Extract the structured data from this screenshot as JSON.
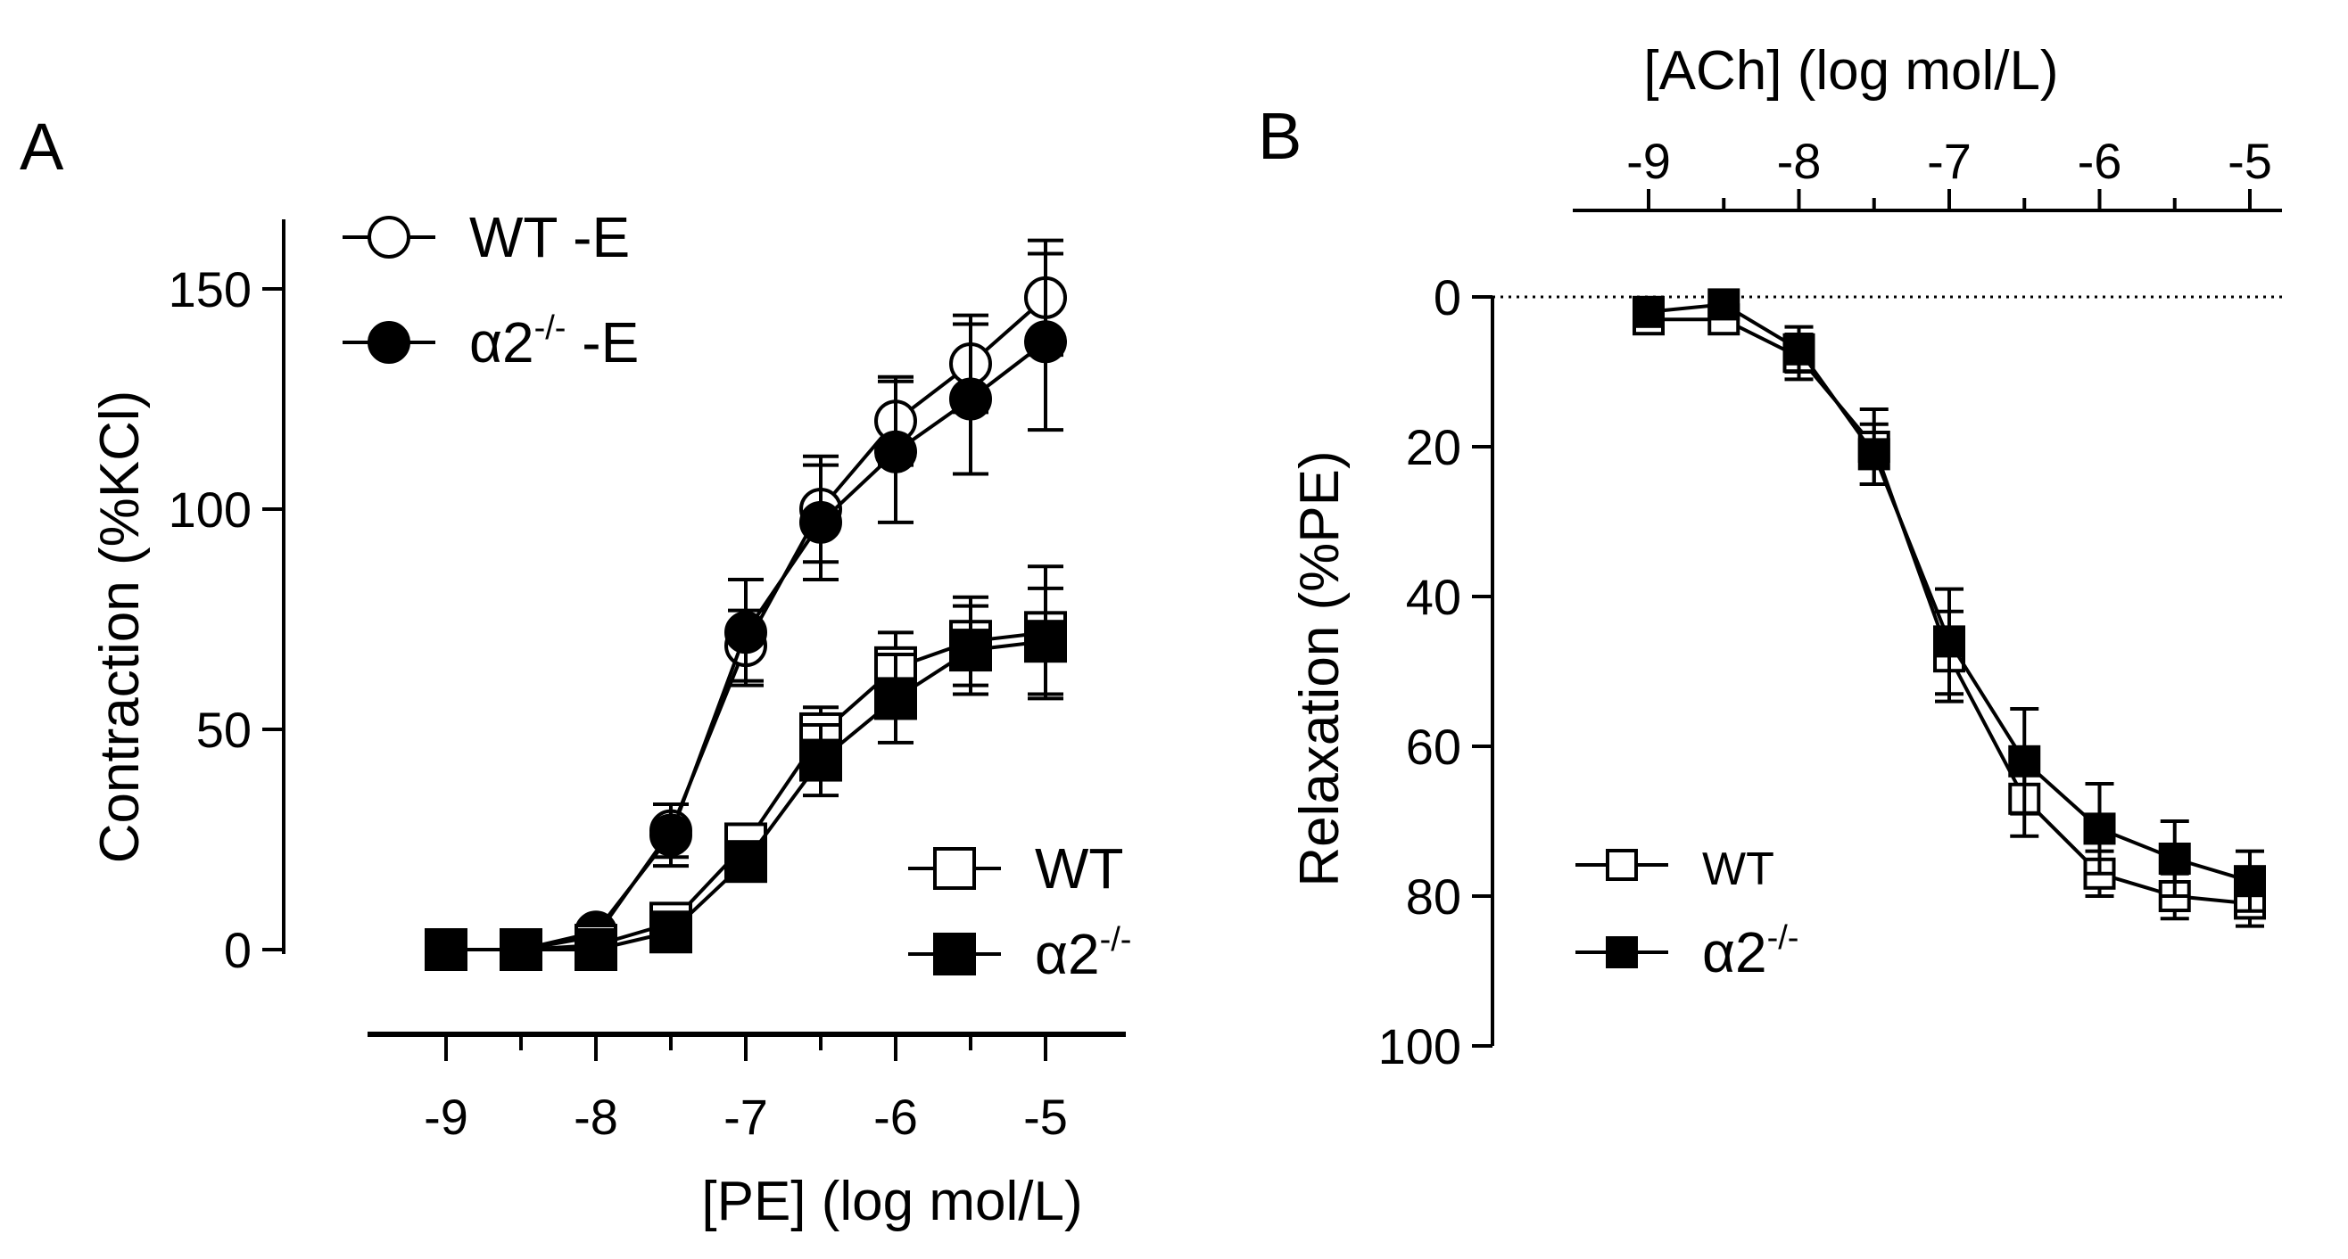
{
  "figure": {
    "panel_a_letter": "A",
    "panel_b_letter": "B"
  },
  "chart_data": [
    {
      "panel": "A",
      "type": "line",
      "xlabel": "[PE] (log mol/L)",
      "ylabel": "Contraction (%KCl)",
      "xlim": [
        -9.5,
        -4.5
      ],
      "ylim": [
        0,
        160
      ],
      "xticks": [
        "-9",
        "-8",
        "-7",
        "-6",
        "-5"
      ],
      "yticks": [
        "0",
        "50",
        "100",
        "150"
      ],
      "x": [
        -9,
        -8.5,
        -8,
        -7.5,
        -7,
        -6.5,
        -6,
        -5.5,
        -5
      ],
      "series": [
        {
          "name": "WT -E",
          "label": "WT -E",
          "marker": "circle-open",
          "values": [
            0,
            0,
            3,
            27,
            69,
            100,
            120,
            133,
            148
          ],
          "errors": [
            1,
            1,
            2,
            6,
            8,
            12,
            10,
            11,
            13
          ]
        },
        {
          "name": "α2-/- -E",
          "label_main": "α2",
          "label_sup": "-/-",
          "label_tail": " -E",
          "marker": "circle-filled",
          "values": [
            0,
            0,
            4,
            26,
            72,
            97,
            113,
            125,
            138
          ],
          "errors": [
            1,
            1,
            2,
            7,
            12,
            13,
            16,
            17,
            20
          ]
        },
        {
          "name": "WT",
          "label": "WT",
          "marker": "square-open",
          "values": [
            0,
            0,
            1,
            6,
            24,
            49,
            64,
            70,
            72
          ],
          "errors": [
            1,
            1,
            1,
            2,
            4,
            6,
            8,
            10,
            15
          ]
        },
        {
          "name": "α2-/-",
          "label_main": "α2",
          "label_sup": "-/-",
          "marker": "square-filled",
          "values": [
            0,
            0,
            0,
            4,
            20,
            43,
            57,
            68,
            70
          ],
          "errors": [
            1,
            1,
            1,
            2,
            4,
            8,
            10,
            10,
            12
          ]
        }
      ]
    },
    {
      "panel": "B",
      "type": "line",
      "xlabel": "[ACh] (log mol/L)",
      "ylabel": "Relaxation (%PE)",
      "xlim": [
        -9.5,
        -4.8
      ],
      "ylim": [
        0,
        100
      ],
      "y_inverted": true,
      "reference_line": 0,
      "xticks": [
        "-9",
        "-8",
        "-7",
        "-6",
        "-5"
      ],
      "yticks": [
        "0",
        "20",
        "40",
        "60",
        "80",
        "100"
      ],
      "x": [
        -9,
        -8.5,
        -8,
        -7.5,
        -7,
        -6.5,
        -6,
        -5.5,
        -5
      ],
      "series": [
        {
          "name": "WT",
          "label": "WT",
          "marker": "square-open",
          "values": [
            3,
            3,
            8,
            20,
            48,
            67,
            77,
            80,
            81
          ],
          "errors": [
            1,
            1,
            3,
            5,
            6,
            5,
            3,
            3,
            3
          ]
        },
        {
          "name": "α2-/-",
          "label_main": "α2",
          "label_sup": "-/-",
          "marker": "square-filled",
          "values": [
            2,
            1,
            7,
            21,
            46,
            62,
            71,
            75,
            78
          ],
          "errors": [
            1,
            1,
            3,
            4,
            7,
            7,
            6,
            5,
            4
          ]
        }
      ]
    }
  ]
}
